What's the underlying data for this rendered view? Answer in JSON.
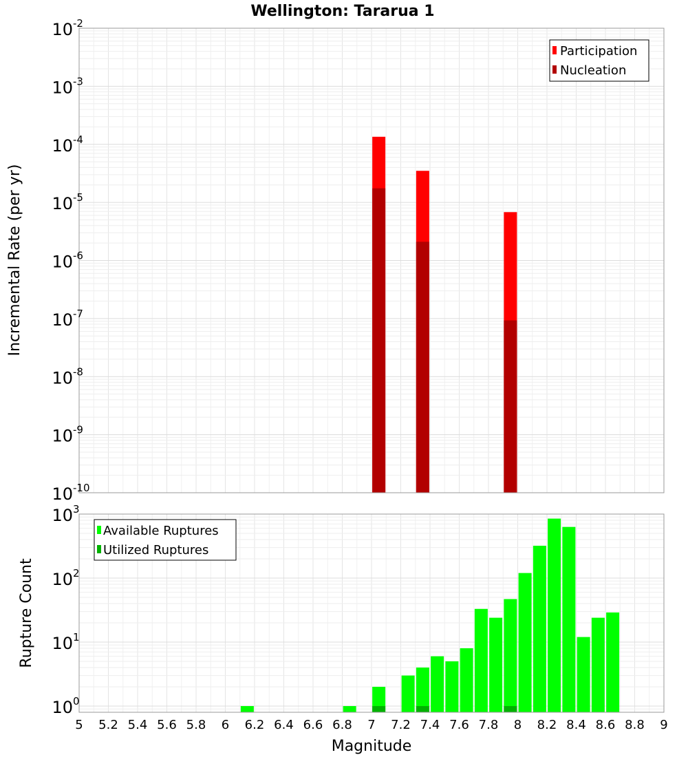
{
  "chart_data": [
    {
      "type": "bar",
      "title": "Wellington: Tararua 1",
      "xlabel": "Magnitude",
      "ylabel": "Incremental Rate (per yr)",
      "yscale": "log",
      "xlim": [
        5,
        9
      ],
      "ylim": [
        1e-10,
        0.01
      ],
      "y_tick_exponents": [
        "-10",
        "-9",
        "-8",
        "-7",
        "-6",
        "-5",
        "-4",
        "-3",
        "-2"
      ],
      "grid": true,
      "legend_position": "top-right",
      "bin_width": 0.1,
      "series": [
        {
          "name": "Participation",
          "color": "#ff0000",
          "x": [
            7.05,
            7.35,
            7.95
          ],
          "values": [
            0.000135,
            3.5e-05,
            6.8e-06
          ]
        },
        {
          "name": "Nucleation",
          "color": "#b20000",
          "x": [
            7.05,
            7.35,
            7.95
          ],
          "values": [
            1.75e-05,
            2.1e-06,
            9.3e-08
          ]
        }
      ]
    },
    {
      "type": "bar",
      "xlabel": "Magnitude",
      "ylabel": "Rupture Count",
      "yscale": "log",
      "xlim": [
        5,
        9
      ],
      "ylim": [
        0.8,
        1000
      ],
      "x_ticks": [
        "5",
        "5.2",
        "5.4",
        "5.6",
        "5.8",
        "6",
        "6.2",
        "6.4",
        "6.6",
        "6.8",
        "7",
        "7.2",
        "7.4",
        "7.6",
        "7.8",
        "8",
        "8.2",
        "8.4",
        "8.6",
        "8.8",
        "9"
      ],
      "y_tick_exponents": [
        "0",
        "1",
        "2",
        "3"
      ],
      "grid": true,
      "legend_position": "top-left",
      "bin_width": 0.1,
      "series": [
        {
          "name": "Available Ruptures",
          "color": "#00ff00",
          "x": [
            6.15,
            6.85,
            7.05,
            7.25,
            7.35,
            7.45,
            7.55,
            7.65,
            7.75,
            7.85,
            7.95,
            8.05,
            8.15,
            8.25,
            8.35,
            8.45,
            8.55,
            8.65
          ],
          "values": [
            1,
            1,
            2,
            3,
            4,
            6,
            5,
            8,
            33,
            24,
            47,
            120,
            320,
            850,
            630,
            12,
            24,
            29
          ]
        },
        {
          "name": "Utilized Ruptures",
          "color": "#00b200",
          "x": [
            7.05,
            7.35,
            7.95
          ],
          "values": [
            1,
            1,
            1
          ]
        }
      ]
    }
  ]
}
